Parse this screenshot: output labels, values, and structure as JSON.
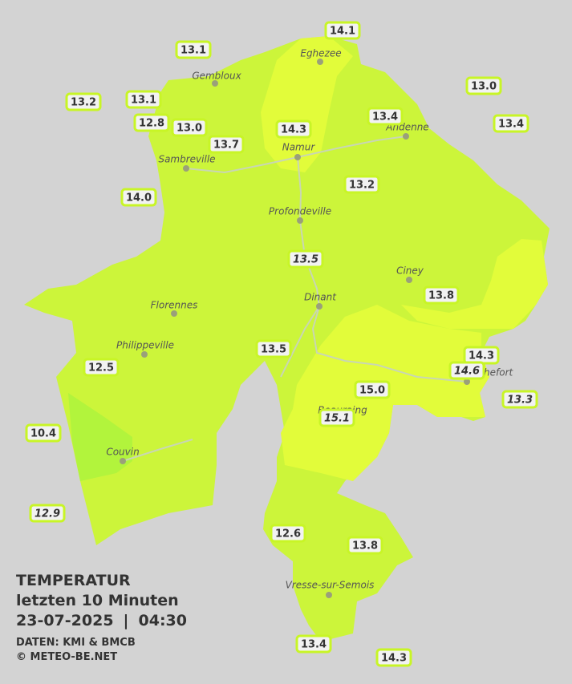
{
  "legend": {
    "title": "TEMPERATUR",
    "period": "letzten 10 Minuten",
    "date": "23-07-2025",
    "separator": "|",
    "time": "04:30",
    "source": "DATEN: KMI & BMCB",
    "copyright": "© METEO-BE.NET"
  },
  "places": [
    "Eghezee",
    "Gembloux",
    "Andenne",
    "Namur",
    "Sambreville",
    "Profondeville",
    "Ciney",
    "Dinant",
    "Florennes",
    "Philippeville",
    "Couvin",
    "Vresse-sur-Semois",
    "Rochefort",
    "Beauraing"
  ],
  "stations": [
    "14.1",
    "13.1",
    "13.0",
    "13.2",
    "13.1",
    "13.4",
    "13.4",
    "12.8",
    "13.0",
    "14.3",
    "13.7",
    "14.0",
    "13.2",
    "13.5",
    "13.8",
    "13.5",
    "12.5",
    "14.3",
    "14.6",
    "15.0",
    "13.3",
    "15.1",
    "10.4",
    "12.9",
    "12.6",
    "13.8",
    "13.4",
    "14.3"
  ]
}
